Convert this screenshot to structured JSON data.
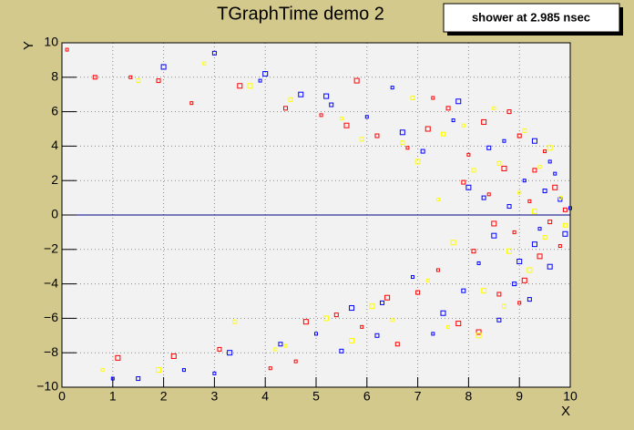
{
  "chart_data": {
    "type": "scatter",
    "title": "TGraphTime demo 2",
    "annotation": "shower at 2.985 nsec",
    "x_label": "X",
    "y_label": "Y",
    "xlim": [
      0,
      10
    ],
    "ylim": [
      -10,
      10
    ],
    "xticks": [
      0,
      1,
      2,
      3,
      4,
      5,
      6,
      7,
      8,
      9,
      10
    ],
    "yticks": [
      {
        "value": -10,
        "label": "−10"
      },
      {
        "value": -8,
        "label": "−8"
      },
      {
        "value": -6,
        "label": "−6"
      },
      {
        "value": -4,
        "label": "−4"
      },
      {
        "value": -2,
        "label": "−2"
      },
      0,
      2,
      4,
      6,
      8,
      10
    ],
    "grid": true,
    "line": {
      "color": "#00008b",
      "x": [
        0,
        10
      ],
      "y": [
        0,
        0
      ]
    },
    "series": [
      {
        "color": "#ff0000",
        "x": [
          0.1,
          0.65,
          1.1,
          1.35,
          1.9,
          2.2,
          2.55,
          3.1,
          3.5,
          4.1,
          4.4,
          4.8,
          5.1,
          5.4,
          5.6,
          5.9,
          6.2,
          6.4,
          6.8,
          7.0,
          7.2,
          7.4,
          7.6,
          7.8,
          8.0,
          8.1,
          8.3,
          8.4,
          8.6,
          8.7,
          8.9,
          9.0,
          9.1,
          9.2,
          9.3,
          9.4,
          9.5,
          9.6,
          9.7,
          9.8,
          9.9,
          8.2,
          7.3,
          6.6,
          5.8,
          4.6,
          7.9,
          8.5,
          9.0,
          8.8
        ],
        "y": [
          9.6,
          8,
          -8.3,
          8,
          7.8,
          -8.2,
          6.5,
          -7.8,
          7.5,
          -8.9,
          6.2,
          -6.2,
          5.8,
          -5.8,
          5.2,
          -6.5,
          4.6,
          -4.8,
          3.9,
          -4.5,
          5.0,
          -3.2,
          6.2,
          -6.3,
          3.5,
          -2.1,
          5.4,
          1.2,
          -4.6,
          2.7,
          -1.0,
          4.6,
          -3.8,
          0.8,
          2.6,
          -2.4,
          3.7,
          -0.4,
          1.6,
          -1.8,
          0.3,
          -6.8,
          6.8,
          -7.5,
          7.8,
          -8.5,
          1.9,
          -0.5,
          -5.1,
          6.0
        ]
      },
      {
        "color": "#0000ff",
        "x": [
          1.0,
          1.5,
          2.0,
          2.4,
          3.0,
          3.3,
          3.9,
          4.3,
          4.7,
          5.0,
          5.3,
          5.7,
          6.0,
          6.3,
          6.7,
          6.9,
          7.1,
          7.5,
          7.7,
          7.9,
          8.0,
          8.2,
          8.4,
          8.5,
          8.7,
          8.8,
          9.0,
          9.1,
          9.2,
          9.3,
          9.4,
          9.5,
          9.6,
          9.7,
          9.8,
          9.9,
          10.0,
          8.6,
          7.8,
          6.5,
          5.5,
          4.0,
          3.0,
          8.9,
          9.3,
          7.3,
          6.2,
          5.2,
          9.6,
          8.3
        ],
        "y": [
          -9.5,
          -9.5,
          8.6,
          -9.0,
          9.4,
          -8.0,
          7.8,
          -7.5,
          7.0,
          -6.9,
          6.4,
          -5.4,
          5.7,
          -5.1,
          4.8,
          -3.6,
          3.7,
          -5.7,
          5.5,
          -4.4,
          1.6,
          -2.8,
          3.9,
          -1.2,
          4.3,
          0.5,
          -2.7,
          2.0,
          -4.9,
          4.3,
          -0.8,
          1.4,
          -3.0,
          2.4,
          0.9,
          -1.1,
          0.4,
          -6.1,
          6.6,
          7.4,
          -7.9,
          8.2,
          -9.2,
          -4.0,
          -1.7,
          -6.9,
          -7.0,
          6.9,
          3.1,
          1.0
        ]
      },
      {
        "color": "#ffff00",
        "x": [
          0.8,
          1.5,
          1.9,
          2.8,
          3.4,
          3.7,
          4.2,
          4.5,
          5.2,
          5.5,
          5.9,
          6.1,
          6.5,
          6.7,
          7.0,
          7.2,
          7.5,
          7.7,
          7.9,
          8.1,
          8.3,
          8.5,
          8.6,
          8.8,
          9.0,
          9.1,
          9.2,
          9.4,
          9.5,
          9.6,
          9.8,
          9.9,
          8.2,
          7.6,
          6.9,
          5.7,
          4.4,
          8.7,
          9.3,
          7.4
        ],
        "y": [
          -9.0,
          7.8,
          -9.0,
          8.8,
          -6.2,
          7.5,
          -7.8,
          6.7,
          -6.0,
          5.6,
          4.4,
          -5.3,
          -6.1,
          4.2,
          3.1,
          -3.8,
          4.7,
          -1.6,
          5.2,
          2.6,
          -4.4,
          6.2,
          3.0,
          -2.1,
          1.3,
          4.9,
          -3.2,
          2.8,
          -1.3,
          3.9,
          1.0,
          -0.6,
          -7.0,
          -6.5,
          6.8,
          -7.3,
          -7.6,
          -5.3,
          0.2,
          0.9
        ]
      }
    ]
  }
}
